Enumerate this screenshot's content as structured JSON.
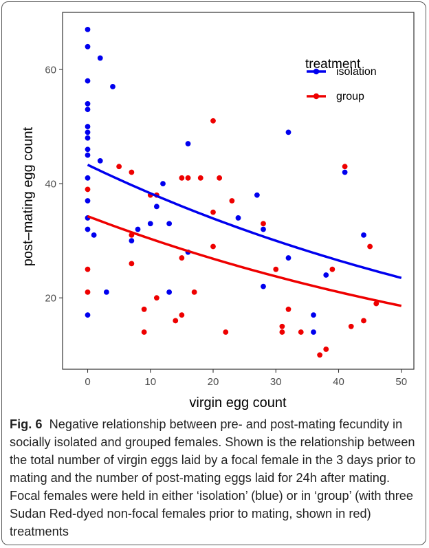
{
  "caption": {
    "label": "Fig. 6",
    "text": "Negative relationship between pre- and post-mating fecundity in socially isolated and grouped females. Shown is the relationship between the total number of virgin eggs laid by a focal female in the 3 days prior to mating and the number of post-mating eggs laid for 24h after mating. Focal females were held in either ‘isolation’ (blue) or in ‘group’ (with three Sudan Red-dyed non-focal females prior to mating, shown in red) treatments"
  },
  "chart_data": {
    "type": "scatter",
    "xlabel": "virgin egg count",
    "ylabel": "post–mating egg count",
    "xlim": [
      -4,
      52
    ],
    "ylim": [
      7.5,
      70
    ],
    "xticks": [
      0,
      10,
      20,
      30,
      40,
      50
    ],
    "yticks": [
      20,
      40,
      60
    ],
    "grid": false,
    "legend": {
      "title": "treatment",
      "position": "top-right"
    },
    "series": [
      {
        "name": "isolation",
        "color": "#0000ee",
        "points": [
          [
            0,
            67
          ],
          [
            0,
            64
          ],
          [
            0,
            58
          ],
          [
            0,
            54
          ],
          [
            0,
            53
          ],
          [
            0,
            50
          ],
          [
            0,
            49
          ],
          [
            0,
            48
          ],
          [
            0,
            46
          ],
          [
            0,
            45
          ],
          [
            0,
            41
          ],
          [
            0,
            37
          ],
          [
            0,
            34
          ],
          [
            0,
            32
          ],
          [
            0,
            17
          ],
          [
            1,
            31
          ],
          [
            2,
            62
          ],
          [
            2,
            44
          ],
          [
            3,
            21
          ],
          [
            4,
            57
          ],
          [
            7,
            30
          ],
          [
            8,
            32
          ],
          [
            10,
            33
          ],
          [
            11,
            36
          ],
          [
            12,
            40
          ],
          [
            13,
            33
          ],
          [
            13,
            21
          ],
          [
            16,
            47
          ],
          [
            16,
            28
          ],
          [
            24,
            34
          ],
          [
            27,
            38
          ],
          [
            28,
            32
          ],
          [
            28,
            22
          ],
          [
            32,
            49
          ],
          [
            32,
            27
          ],
          [
            36,
            17
          ],
          [
            36,
            14
          ],
          [
            38,
            24
          ],
          [
            41,
            42
          ],
          [
            44,
            31
          ]
        ],
        "fit": {
          "from": [
            0,
            43.3
          ],
          "to": [
            50,
            23.5
          ]
        }
      },
      {
        "name": "group",
        "color": "#ee0000",
        "points": [
          [
            0,
            39
          ],
          [
            0,
            25
          ],
          [
            0,
            21
          ],
          [
            5,
            43
          ],
          [
            7,
            42
          ],
          [
            7,
            31
          ],
          [
            7,
            26
          ],
          [
            9,
            18
          ],
          [
            9,
            14
          ],
          [
            10,
            38
          ],
          [
            11,
            38
          ],
          [
            11,
            20
          ],
          [
            14,
            16
          ],
          [
            15,
            41
          ],
          [
            15,
            27
          ],
          [
            15,
            17
          ],
          [
            16,
            41
          ],
          [
            17,
            21
          ],
          [
            18,
            41
          ],
          [
            20,
            51
          ],
          [
            20,
            35
          ],
          [
            20,
            29
          ],
          [
            21,
            41
          ],
          [
            22,
            14
          ],
          [
            23,
            37
          ],
          [
            28,
            33
          ],
          [
            30,
            25
          ],
          [
            31,
            15
          ],
          [
            31,
            14
          ],
          [
            32,
            18
          ],
          [
            34,
            14
          ],
          [
            37,
            10
          ],
          [
            38,
            11
          ],
          [
            39,
            25
          ],
          [
            41,
            43
          ],
          [
            42,
            15
          ],
          [
            44,
            16
          ],
          [
            45,
            29
          ],
          [
            46,
            19
          ]
        ],
        "fit": {
          "from": [
            0,
            34.3
          ],
          "to": [
            50,
            18.6
          ]
        }
      }
    ]
  }
}
